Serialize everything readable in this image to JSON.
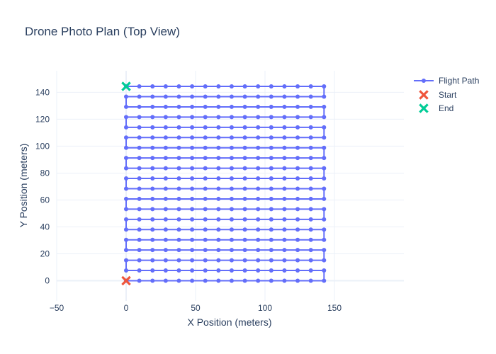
{
  "chart_data": {
    "type": "scatter",
    "title": "Drone Photo Plan (Top View)",
    "xlabel": "X Position (meters)",
    "ylabel": "Y Position (meters)",
    "xlim": [
      -50,
      200
    ],
    "ylim": [
      -15,
      156
    ],
    "xticks": [
      -50,
      0,
      50,
      100,
      150
    ],
    "yticks": [
      0,
      20,
      40,
      60,
      80,
      100,
      120,
      140
    ],
    "grid": true,
    "legend_position": "top-right",
    "lawnmower": {
      "x_start": 0,
      "x_end": 142.5,
      "x_step": 9.5,
      "y_start": 0,
      "y_step": 7.6,
      "rows": 20
    },
    "series": [
      {
        "name": "Flight Path",
        "mode": "lines+markers",
        "color": "#636efa"
      },
      {
        "name": "Start",
        "mode": "markers",
        "symbol": "x",
        "color": "#ef553b",
        "points": [
          [
            0,
            0
          ]
        ]
      },
      {
        "name": "End",
        "mode": "markers",
        "symbol": "x",
        "color": "#00cc96",
        "points": [
          [
            0,
            144.4
          ]
        ]
      }
    ]
  }
}
